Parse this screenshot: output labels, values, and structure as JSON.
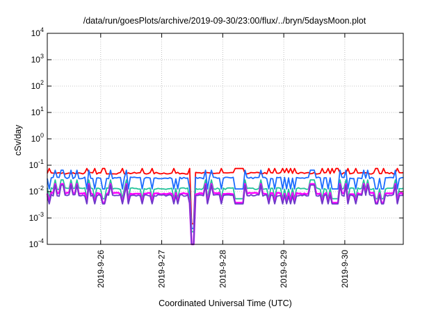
{
  "chart_data": {
    "type": "line",
    "title": "/data/run/goesPlots/archive/2019-09-30/23:00/flux/../bryn/5daysMoon.plot",
    "xlabel": "Coordinated Universal Time (UTC)",
    "ylabel": "cSv/day",
    "yscale": "log",
    "ylim": [
      0.0001,
      10000
    ],
    "xlim": [
      "2019-09-25T03:00",
      "2019-09-30T23:00"
    ],
    "y_ticks": [
      {
        "base": "10",
        "exp": "-4"
      },
      {
        "base": "10",
        "exp": "-3"
      },
      {
        "base": "10",
        "exp": "-2"
      },
      {
        "base": "10",
        "exp": "-1"
      },
      {
        "base": "10",
        "exp": "0"
      },
      {
        "base": "10",
        "exp": "1"
      },
      {
        "base": "10",
        "exp": "2"
      },
      {
        "base": "10",
        "exp": "3"
      },
      {
        "base": "10",
        "exp": "4"
      }
    ],
    "x_ticks": [
      "2019-9-26",
      "2019-9-27",
      "2019-9-28",
      "2019-9-29",
      "2019-9-30"
    ],
    "grid": true,
    "legend": "none",
    "series": [
      {
        "color": "#ff0000",
        "level": 0.05,
        "dip_to": 0.0006
      },
      {
        "color": "#1a6cff",
        "level": 0.033,
        "dip_to": 0.0004
      },
      {
        "color": "#22c39a",
        "level": 0.013,
        "dip_to": 0.0003
      },
      {
        "color": "#ff00ff",
        "level": 0.0085,
        "dip_to": 0.0001
      },
      {
        "color": "#6a3cc8",
        "level": 0.0072,
        "dip_to": 0.0001
      }
    ]
  }
}
